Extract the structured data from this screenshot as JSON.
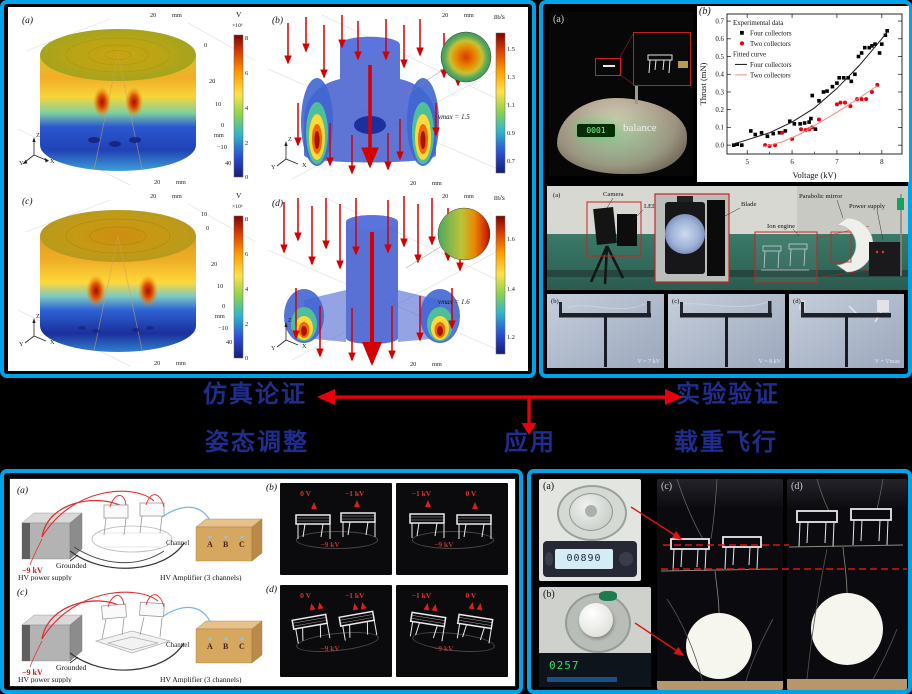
{
  "colors": {
    "frame_blue": "#00a2e8",
    "navy_text": "#1e2d8e",
    "arrow_red": "#e8000d",
    "scatter_red": "#e8000d",
    "fit_pink": "#f28a8a"
  },
  "captions": {
    "simulation": "仿真论证",
    "experiment": "实验验证",
    "attitude": "姿态调整",
    "application": "应用",
    "load_flight": "载重飞行"
  },
  "sim": {
    "a": {
      "label": "(a)",
      "cb_title": "V",
      "cb_scale": "×10³",
      "cb_ticks": [
        "8",
        "6",
        "4",
        "2",
        "0"
      ],
      "top_ticks": [
        "20",
        "mm"
      ],
      "right_ticks": [
        "0",
        "20",
        "10",
        "0",
        "mm",
        "−10",
        "40"
      ],
      "bottom_ticks": [
        "20",
        "mm"
      ],
      "axes": [
        "Z",
        "Y",
        "X"
      ]
    },
    "b": {
      "label": "(b)",
      "cb_title": "m/s",
      "cb_ticks": [
        "1.5",
        "1.3",
        "1.1",
        "0.9",
        "0.7"
      ],
      "top_ticks": [
        "20",
        "mm"
      ],
      "bottom_ticks": [
        "20",
        "mm"
      ],
      "vmax": "vmax = 1.5",
      "axes": [
        "Z",
        "Y",
        "X"
      ]
    },
    "c": {
      "label": "(c)",
      "cb_title": "V",
      "cb_scale": "×10³",
      "cb_ticks": [
        "8",
        "6",
        "4",
        "2",
        "0"
      ],
      "top_ticks": [
        "20",
        "mm"
      ],
      "right_ticks": [
        "10",
        "0",
        "20",
        "10",
        "0",
        "mm",
        "−10",
        "40"
      ],
      "bottom_ticks": [
        "20",
        "mm"
      ],
      "axes": [
        "Z",
        "Y",
        "X"
      ]
    },
    "d": {
      "label": "(d)",
      "cb_title": "m/s",
      "cb_ticks": [
        "1.6",
        "1.4",
        "1.2"
      ],
      "top_ticks": [
        "20",
        "mm"
      ],
      "bottom_ticks": [
        "20",
        "mm"
      ],
      "vmax": "vmax = 1.6",
      "axes": [
        "Z",
        "Y",
        "X"
      ]
    }
  },
  "exp": {
    "photo_a": {
      "label": "(a)",
      "balance_text": "balance",
      "display": "0001"
    },
    "chart_label": "(b)",
    "lab": {
      "label": "(a)",
      "ann_camera": "Camera",
      "ann_led": "LED",
      "ann_blade": "Blade",
      "ann_ion": "Ion engine",
      "ann_mirror": "Parabolic mirror",
      "ann_power": "Power supply"
    },
    "strip": [
      {
        "label": "(b)",
        "volt": "V = 7 kV"
      },
      {
        "label": "(c)",
        "volt": "V = 8 kV"
      },
      {
        "label": "(d)",
        "volt": "V = Vmax"
      }
    ]
  },
  "chart_data": {
    "type": "scatter",
    "title": "",
    "xlabel": "Voltage (kV)",
    "ylabel": "Thrust (mN)",
    "xlim": [
      4.55,
      8.45
    ],
    "ylim": [
      -0.05,
      0.74
    ],
    "xticks": [
      5,
      6,
      7,
      8
    ],
    "yticks": [
      0.0,
      0.1,
      0.2,
      0.3,
      0.4,
      0.5,
      0.6,
      0.7
    ],
    "grid": false,
    "legend_position": "upper-left",
    "legend": {
      "exp_header": "Experimental data",
      "exp_items": [
        "Four collectors",
        "Two collectors"
      ],
      "fit_header": "Fitted curve",
      "fit_items": [
        "Four collectors",
        "Two collectors"
      ]
    },
    "series": [
      {
        "name": "Four collectors (experimental)",
        "kind": "scatter",
        "marker": "square",
        "color": "#000000",
        "points": [
          [
            4.7,
            0.0
          ],
          [
            4.78,
            0.005
          ],
          [
            4.88,
            0.0
          ],
          [
            5.08,
            0.08
          ],
          [
            5.18,
            0.06
          ],
          [
            5.32,
            0.07
          ],
          [
            5.45,
            0.05
          ],
          [
            5.58,
            0.065
          ],
          [
            5.72,
            0.07
          ],
          [
            5.85,
            0.08
          ],
          [
            5.95,
            0.135
          ],
          [
            6.05,
            0.12
          ],
          [
            6.18,
            0.12
          ],
          [
            6.28,
            0.125
          ],
          [
            6.38,
            0.13
          ],
          [
            6.42,
            0.15
          ],
          [
            6.45,
            0.28
          ],
          [
            6.52,
            0.09
          ],
          [
            6.6,
            0.25
          ],
          [
            6.7,
            0.3
          ],
          [
            6.78,
            0.305
          ],
          [
            6.9,
            0.33
          ],
          [
            7.0,
            0.35
          ],
          [
            7.05,
            0.38
          ],
          [
            7.15,
            0.38
          ],
          [
            7.25,
            0.38
          ],
          [
            7.32,
            0.36
          ],
          [
            7.4,
            0.4
          ],
          [
            7.48,
            0.5
          ],
          [
            7.55,
            0.52
          ],
          [
            7.62,
            0.55
          ],
          [
            7.72,
            0.55
          ],
          [
            7.78,
            0.56
          ],
          [
            7.85,
            0.57
          ],
          [
            7.95,
            0.52
          ],
          [
            8.0,
            0.57
          ],
          [
            8.08,
            0.62
          ],
          [
            8.12,
            0.645
          ]
        ]
      },
      {
        "name": "Two collectors (experimental)",
        "kind": "scatter",
        "marker": "circle",
        "color": "#e8000d",
        "points": [
          [
            5.4,
            0.0
          ],
          [
            5.5,
            -0.005
          ],
          [
            5.62,
            0.0
          ],
          [
            5.78,
            0.07
          ],
          [
            6.0,
            0.035
          ],
          [
            6.2,
            0.09
          ],
          [
            6.3,
            0.085
          ],
          [
            6.38,
            0.09
          ],
          [
            6.45,
            0.1
          ],
          [
            6.6,
            0.145
          ],
          [
            7.0,
            0.23
          ],
          [
            7.08,
            0.24
          ],
          [
            7.18,
            0.24
          ],
          [
            7.3,
            0.22
          ],
          [
            7.45,
            0.26
          ],
          [
            7.55,
            0.26
          ],
          [
            7.65,
            0.26
          ],
          [
            7.78,
            0.3
          ],
          [
            7.9,
            0.34
          ]
        ]
      },
      {
        "name": "Four collectors (fitted)",
        "kind": "line",
        "color": "#1a1a1a",
        "points": [
          [
            4.68,
            0.005
          ],
          [
            5.0,
            0.03
          ],
          [
            5.5,
            0.07
          ],
          [
            6.0,
            0.13
          ],
          [
            6.5,
            0.21
          ],
          [
            7.0,
            0.32
          ],
          [
            7.5,
            0.45
          ],
          [
            8.0,
            0.6
          ],
          [
            8.15,
            0.65
          ]
        ]
      },
      {
        "name": "Two collectors (fitted)",
        "kind": "line",
        "color": "#f28a8a",
        "points": [
          [
            5.35,
            -0.01
          ],
          [
            5.8,
            0.02
          ],
          [
            6.2,
            0.065
          ],
          [
            6.6,
            0.125
          ],
          [
            7.0,
            0.185
          ],
          [
            7.4,
            0.25
          ],
          [
            7.9,
            0.335
          ]
        ]
      }
    ]
  },
  "att": {
    "d1": {
      "label": "(a)"
    },
    "d2": {
      "label": "(c)"
    },
    "diagram": {
      "neg": "−9 kV",
      "grounded": "Grounded",
      "supply": "HV power supply",
      "channel": "Channel",
      "chA": "A",
      "chB": "B",
      "chC": "C",
      "amp": "HV Amplifier (3 channels)"
    },
    "p1": {
      "label": "(b)",
      "subs": [
        [
          "0 V",
          "−1 kV",
          "−9 kV"
        ],
        [
          "−1 kV",
          "0 V",
          "−9 kV"
        ]
      ]
    },
    "p2": {
      "label": "(d)",
      "subs": [
        [
          "0 V",
          "−1 kV",
          "−9 kV"
        ],
        [
          "−1 kV",
          "0 V",
          "−9 kV"
        ]
      ]
    }
  },
  "load": {
    "a": {
      "label": "(a)",
      "display": "00890"
    },
    "b": {
      "label": "(b)",
      "display": "0257"
    },
    "c": {
      "label": "(c)"
    },
    "d": {
      "label": "(d)"
    }
  }
}
